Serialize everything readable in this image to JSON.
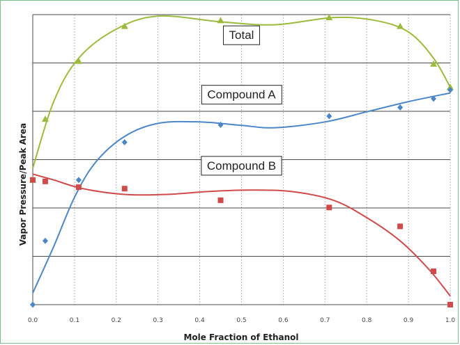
{
  "chart_data": {
    "type": "scatter",
    "xlabel": "Mole Fraction of Ethanol",
    "ylabel": "Vapor Pressure/Peak Area",
    "xlim": [
      0,
      1
    ],
    "ylim": [
      0,
      1
    ],
    "x_ticks": [
      "0.0",
      "0.1",
      "0.2",
      "0.3",
      "0.4",
      "0.5",
      "0.6",
      "0.7",
      "0.8",
      "0.9",
      "1.0"
    ],
    "y_gridlines": 6,
    "grid": true,
    "legend": "none",
    "annotations": [
      {
        "text": "Total",
        "x": 0.5,
        "y": 0.93
      },
      {
        "text": "Compound A",
        "x": 0.5,
        "y": 0.725
      },
      {
        "text": "Compound B",
        "x": 0.5,
        "y": 0.48
      }
    ],
    "series": [
      {
        "marker": "triangle",
        "color": "#9bbb3c",
        "points": [
          [
            0.0,
            0.43
          ],
          [
            0.03,
            0.64
          ],
          [
            0.11,
            0.84
          ],
          [
            0.22,
            0.96
          ],
          [
            0.45,
            0.98
          ],
          [
            0.71,
            0.99
          ],
          [
            0.88,
            0.96
          ],
          [
            0.96,
            0.83
          ],
          [
            1.0,
            0.75
          ]
        ],
        "curve": [
          [
            0.0,
            0.47
          ],
          [
            0.05,
            0.7
          ],
          [
            0.11,
            0.85
          ],
          [
            0.2,
            0.95
          ],
          [
            0.3,
            0.995
          ],
          [
            0.45,
            0.975
          ],
          [
            0.58,
            0.965
          ],
          [
            0.72,
            0.99
          ],
          [
            0.82,
            0.98
          ],
          [
            0.9,
            0.94
          ],
          [
            0.96,
            0.85
          ],
          [
            1.0,
            0.75
          ]
        ]
      },
      {
        "marker": "diamond",
        "color": "#4a86c8",
        "points": [
          [
            0.0,
            0.0
          ],
          [
            0.03,
            0.22
          ],
          [
            0.11,
            0.43
          ],
          [
            0.22,
            0.56
          ],
          [
            0.45,
            0.62
          ],
          [
            0.71,
            0.65
          ],
          [
            0.88,
            0.68
          ],
          [
            0.96,
            0.71
          ],
          [
            1.0,
            0.74
          ]
        ],
        "curve": [
          [
            0.0,
            0.04
          ],
          [
            0.05,
            0.2
          ],
          [
            0.1,
            0.37
          ],
          [
            0.15,
            0.49
          ],
          [
            0.22,
            0.58
          ],
          [
            0.3,
            0.625
          ],
          [
            0.4,
            0.63
          ],
          [
            0.5,
            0.618
          ],
          [
            0.58,
            0.61
          ],
          [
            0.7,
            0.63
          ],
          [
            0.8,
            0.665
          ],
          [
            0.9,
            0.7
          ],
          [
            1.0,
            0.73
          ]
        ]
      },
      {
        "marker": "square",
        "color": "#d04a4a",
        "points": [
          [
            0.0,
            0.43
          ],
          [
            0.03,
            0.425
          ],
          [
            0.11,
            0.405
          ],
          [
            0.22,
            0.4
          ],
          [
            0.45,
            0.36
          ],
          [
            0.71,
            0.335
          ],
          [
            0.88,
            0.27
          ],
          [
            0.96,
            0.115
          ],
          [
            1.0,
            0.0
          ]
        ],
        "curve": [
          [
            0.0,
            0.45
          ],
          [
            0.05,
            0.43
          ],
          [
            0.12,
            0.4
          ],
          [
            0.22,
            0.38
          ],
          [
            0.32,
            0.38
          ],
          [
            0.42,
            0.39
          ],
          [
            0.52,
            0.395
          ],
          [
            0.62,
            0.39
          ],
          [
            0.72,
            0.36
          ],
          [
            0.8,
            0.3
          ],
          [
            0.88,
            0.22
          ],
          [
            0.95,
            0.12
          ],
          [
            1.0,
            0.03
          ]
        ]
      }
    ]
  }
}
